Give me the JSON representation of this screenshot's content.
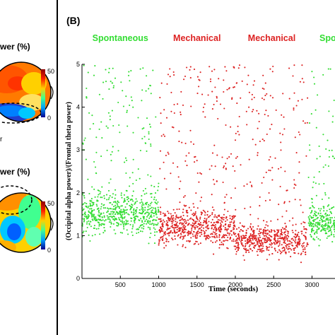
{
  "panel_a": {
    "top_label": "wer (%)",
    "bottom_label": "wer (%)",
    "colorbar_top": [
      "50",
      "0"
    ],
    "colorbar_bottom": [
      "50",
      "0"
    ],
    "colors": {
      "hot": "#ff6a00",
      "warm": "#ffd000",
      "cool": "#00c8ff",
      "cold": "#1f3fd0",
      "ring": "#000000"
    }
  },
  "panel_b": {
    "label": "(B)"
  },
  "chart_data": {
    "type": "scatter",
    "title": "",
    "xlabel": "Time (seconds)",
    "ylabel": "(Occipital alpha power)/(Frontal theta power)",
    "xlim": [
      0,
      3300
    ],
    "ylim": [
      0,
      5
    ],
    "xticks": [
      500,
      1000,
      1500,
      2000,
      2500,
      3000
    ],
    "yticks": [
      0,
      1,
      2,
      3,
      4,
      5
    ],
    "grid": false,
    "segments": [
      {
        "label": "Spontaneous",
        "color": "#33dd33",
        "x_range": [
          0,
          1000
        ],
        "cluster_center": 1.5,
        "spread": 0.6,
        "points": 700
      },
      {
        "label": "Mechanical",
        "color": "#dd2222",
        "x_range": [
          1000,
          2000
        ],
        "cluster_center": 1.2,
        "spread": 0.55,
        "points": 720
      },
      {
        "label": "Mechanical",
        "color": "#dd2222",
        "x_range": [
          2000,
          2950
        ],
        "cluster_center": 0.9,
        "spread": 0.45,
        "points": 650
      },
      {
        "label": "Spo",
        "color": "#33dd33",
        "x_range": [
          2950,
          3300
        ],
        "cluster_center": 1.3,
        "spread": 0.5,
        "points": 260
      }
    ]
  }
}
